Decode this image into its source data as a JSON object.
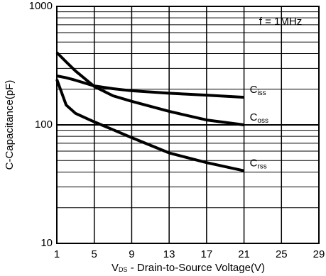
{
  "chart_data": {
    "type": "line",
    "annotation": "f  =  1MHz",
    "x_label": {
      "symbol": "V",
      "subscript": "DS",
      "text": " - Drain-to-Source Voltage(V)"
    },
    "y_label": "C-Capacitance(pF)",
    "x": [
      1,
      2,
      3,
      5,
      7,
      9,
      13,
      17,
      21
    ],
    "series": [
      {
        "name": "C",
        "subscript": "iss",
        "color": "#000000",
        "values": [
          259,
          250,
          238,
          213,
          202,
          194,
          185,
          178,
          171
        ]
      },
      {
        "name": "C",
        "subscript": "oss",
        "color": "#000000",
        "values": [
          408,
          340,
          285,
          211,
          176,
          158,
          130,
          110,
          100
        ]
      },
      {
        "name": "C",
        "subscript": "rss",
        "color": "#000000",
        "values": [
          242,
          147,
          125,
          106,
          91,
          78,
          58,
          48,
          41
        ]
      }
    ],
    "xlim": [
      1,
      29
    ],
    "xticks": [
      1,
      5,
      9,
      13,
      17,
      21,
      25,
      29
    ],
    "ylim": [
      10,
      1000
    ],
    "yticks": [
      10,
      100,
      1000
    ],
    "log_y": true,
    "minor_yticks": [
      20,
      30,
      40,
      50,
      60,
      70,
      80,
      90,
      200,
      300,
      400,
      500,
      600,
      700,
      800,
      900
    ],
    "grid": true
  }
}
